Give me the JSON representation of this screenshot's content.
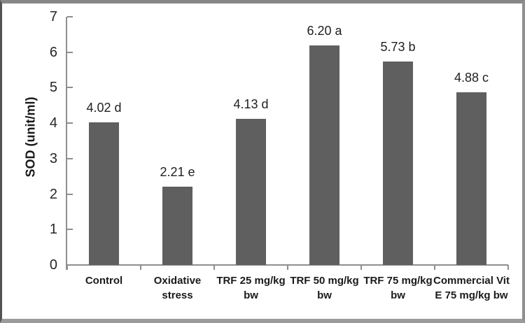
{
  "chart_data": {
    "type": "bar",
    "title": "",
    "xlabel": "",
    "ylabel": "SOD (unit/ml)",
    "ylim": [
      0,
      7
    ],
    "ytick_step": 1,
    "grid": "off",
    "legend": "none",
    "categories": [
      "Control",
      "Oxidative stress",
      "TRF 25 mg/kg bw",
      "TRF 50 mg/kg bw",
      "TRF 75 mg/kg bw",
      "Commercial Vit E 75 mg/kg bw"
    ],
    "category_label_lines": [
      [
        "Control"
      ],
      [
        "Oxidative",
        "stress"
      ],
      [
        "TRF 25 mg/kg",
        "bw"
      ],
      [
        "TRF 50 mg/kg",
        "bw"
      ],
      [
        "TRF 75 mg/kg",
        "bw"
      ],
      [
        "Commercial Vit",
        "E 75 mg/kg bw"
      ]
    ],
    "values": [
      4.02,
      2.21,
      4.13,
      6.2,
      5.73,
      4.88
    ],
    "data_labels": [
      "4.02 d",
      "2.21 e",
      "4.13 d",
      "6.20 a",
      "5.73 b",
      "4.88 c"
    ],
    "bar_color": "#5f5f5f",
    "axis_color": "#8e8e8e",
    "text_color": "#262626"
  }
}
